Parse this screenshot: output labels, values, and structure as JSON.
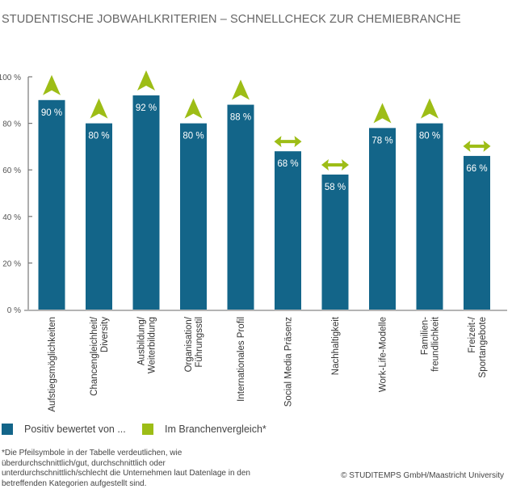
{
  "title": "STUDENTISCHE JOBWAHLKRITERIEN – SCHNELLCHECK ZUR CHEMIEBRANCHE",
  "chart_data": {
    "type": "bar",
    "title": "STUDENTISCHE JOBWAHLKRITERIEN – SCHNELLCHECK ZUR CHEMIEBRANCHE",
    "categories": [
      [
        "Aufstiegsmöglichkeiten"
      ],
      [
        "Chancengleichheit/",
        "Diversity"
      ],
      [
        "Ausbildung/",
        "Weiterbildung"
      ],
      [
        "Organisation/",
        "Führungsstil"
      ],
      [
        "Internationales Profil"
      ],
      [
        "Social Media Präsenz"
      ],
      [
        "Nachhaltigkeit"
      ],
      [
        "Work-Life-Modelle"
      ],
      [
        "Familien-",
        "freundlichkeit"
      ],
      [
        "Freizeit-/",
        "Sportangebote"
      ]
    ],
    "series": [
      {
        "name": "Positiv bewertet von ...",
        "values": [
          90,
          80,
          92,
          80,
          88,
          68,
          58,
          78,
          80,
          66
        ],
        "color": "#136589"
      }
    ],
    "value_labels": [
      "90 %",
      "80 %",
      "92 %",
      "80 %",
      "88 %",
      "68 %",
      "58 %",
      "78 %",
      "80 %",
      "66 %"
    ],
    "branchenvergleich": {
      "name": "Im Branchenvergleich*",
      "color": "#9dbd16",
      "symbols": [
        "up",
        "up",
        "up",
        "up",
        "up",
        "neutral",
        "neutral",
        "up",
        "up",
        "neutral"
      ]
    },
    "yticks": [
      "0 %",
      "20 %",
      "40 %",
      "60 %",
      "80 %",
      "100 %"
    ],
    "ytick_values": [
      0,
      20,
      40,
      60,
      80,
      100
    ],
    "ylim": [
      0,
      100
    ],
    "grid": false,
    "legend_placement": "bottom-left"
  },
  "legend": {
    "positive": "Positiv bewertet von ...",
    "comparison": "Im Branchenvergleich*"
  },
  "footnote": "*Die Pfeilsymbole in der Tabelle verdeutlichen, wie überdurchschnittlich/gut, durchschnittlich oder unterdurchschnittlich/schlecht die Unternehmen laut Datenlage in den betreffenden Kategorien aufgestellt sind.",
  "copyright": "© STUDITEMPS GmbH/Maastricht University"
}
